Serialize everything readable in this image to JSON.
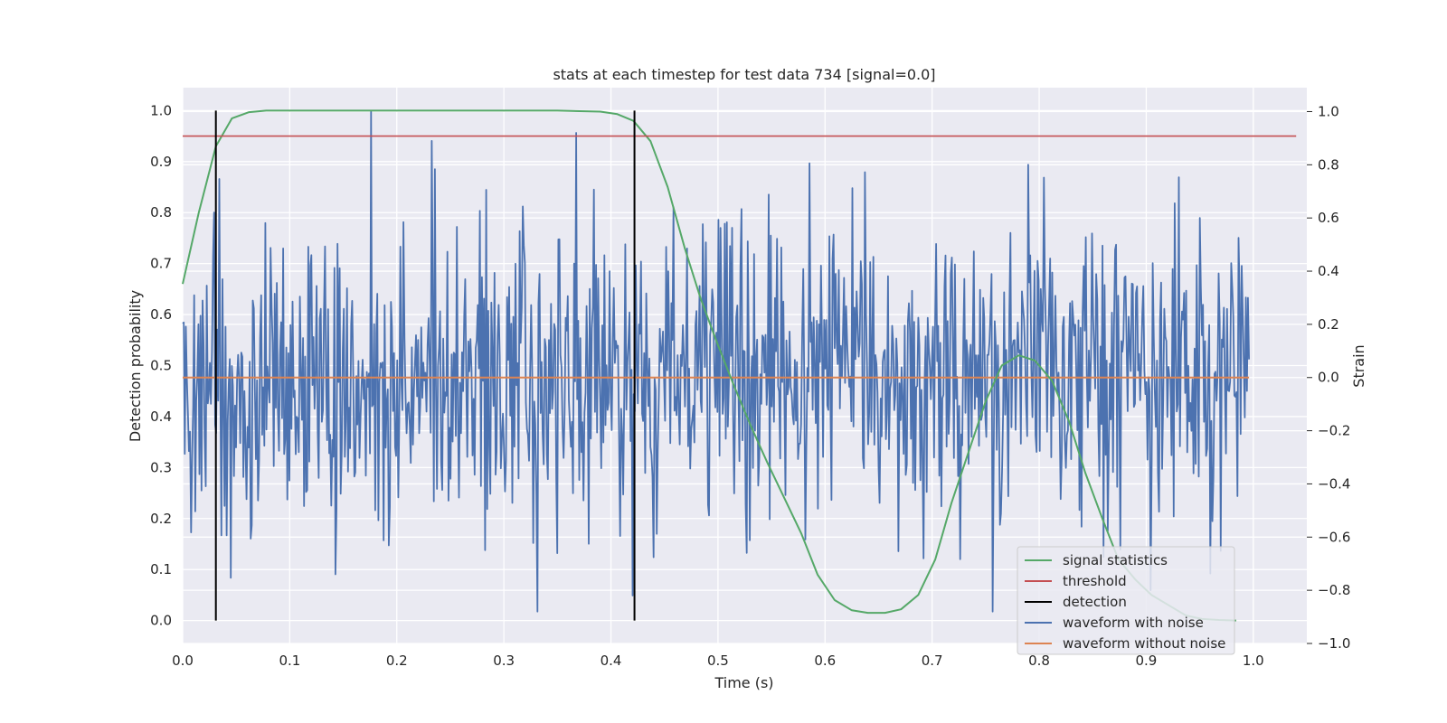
{
  "chart_data": {
    "type": "line",
    "title": "stats at each timestep for test data 734 [signal=0.0]",
    "xlabel": "Time (s)",
    "ylabel": "Detection probability",
    "y2label": "Strain",
    "xlim": [
      0.0,
      1.05
    ],
    "ylim": [
      -0.045,
      1.045
    ],
    "y2lim": [
      -1.0,
      1.09
    ],
    "xticks": [
      "0.0",
      "0.1",
      "0.2",
      "0.3",
      "0.4",
      "0.5",
      "0.6",
      "0.7",
      "0.8",
      "0.9",
      "1.0"
    ],
    "yticks": [
      "0.0",
      "0.1",
      "0.2",
      "0.3",
      "0.4",
      "0.5",
      "0.6",
      "0.7",
      "0.8",
      "0.9",
      "1.0"
    ],
    "y2ticks": [
      "−1.0",
      "−0.8",
      "−0.6",
      "−0.4",
      "−0.2",
      "0.0",
      "0.2",
      "0.4",
      "0.6",
      "0.8",
      "1.0"
    ],
    "grid": true,
    "legend_position": "lower-right",
    "legend": [
      "signal statistics",
      "threshold",
      "detection",
      "waveform with noise",
      "waveform without noise"
    ],
    "colors": {
      "signal": "#55a868",
      "threshold": "#c44e52",
      "detection": "#000000",
      "noise": "#4c72b0",
      "clean": "#dd8452",
      "plot_bg": "#eaeaf2",
      "grid": "#ffffff"
    },
    "series": [
      {
        "name": "signal statistics",
        "axis": "left",
        "x": [
          0.0,
          0.015,
          0.031,
          0.046,
          0.062,
          0.078,
          0.094,
          0.11,
          0.15,
          0.2,
          0.25,
          0.3,
          0.35,
          0.39,
          0.406,
          0.421,
          0.437,
          0.453,
          0.469,
          0.484,
          0.5,
          0.515,
          0.531,
          0.546,
          0.562,
          0.578,
          0.593,
          0.609,
          0.625,
          0.64,
          0.656,
          0.671,
          0.687,
          0.703,
          0.718,
          0.734,
          0.75,
          0.765,
          0.781,
          0.796,
          0.812,
          0.828,
          0.843,
          0.859,
          0.874,
          0.89,
          0.905,
          0.921,
          0.937,
          0.952,
          0.968,
          0.984
        ],
        "y": [
          0.66,
          0.8,
          0.93,
          0.985,
          0.997,
          1.0,
          1.0,
          1.0,
          1.0,
          1.0,
          1.0,
          1.0,
          1.0,
          0.998,
          0.993,
          0.98,
          0.94,
          0.85,
          0.73,
          0.63,
          0.54,
          0.46,
          0.38,
          0.31,
          0.24,
          0.17,
          0.09,
          0.04,
          0.02,
          0.015,
          0.015,
          0.022,
          0.05,
          0.12,
          0.23,
          0.33,
          0.43,
          0.5,
          0.52,
          0.51,
          0.47,
          0.39,
          0.29,
          0.2,
          0.12,
          0.08,
          0.05,
          0.03,
          0.01,
          0.003,
          0.001,
          0.0
        ]
      },
      {
        "name": "threshold",
        "axis": "left",
        "x": [
          0.0,
          1.04
        ],
        "y": [
          0.95,
          0.95
        ]
      },
      {
        "name": "detection",
        "axis": "left",
        "type": "vlines",
        "x": [
          0.031,
          0.422
        ],
        "ymin": 0.0,
        "ymax": 1.0
      },
      {
        "name": "waveform with noise",
        "axis": "right",
        "noise": {
          "x_start": 0.0,
          "x_end": 0.996,
          "n_points": 1020,
          "std": 0.29,
          "min": -0.88,
          "max": 1.0,
          "seed": 734,
          "spikes": [
            {
              "x": 0.176,
              "y": 1.0
            },
            {
              "x": 0.233,
              "y": 0.89
            },
            {
              "x": 0.368,
              "y": 0.92
            },
            {
              "x": 0.79,
              "y": 0.8
            },
            {
              "x": 0.143,
              "y": -0.74
            },
            {
              "x": 0.42,
              "y": -0.82
            },
            {
              "x": 0.757,
              "y": -0.88
            },
            {
              "x": 0.904,
              "y": -0.8
            }
          ]
        }
      },
      {
        "name": "waveform without noise",
        "axis": "right",
        "x": [
          0.0,
          0.996
        ],
        "y": [
          0.0,
          0.0
        ]
      }
    ]
  }
}
